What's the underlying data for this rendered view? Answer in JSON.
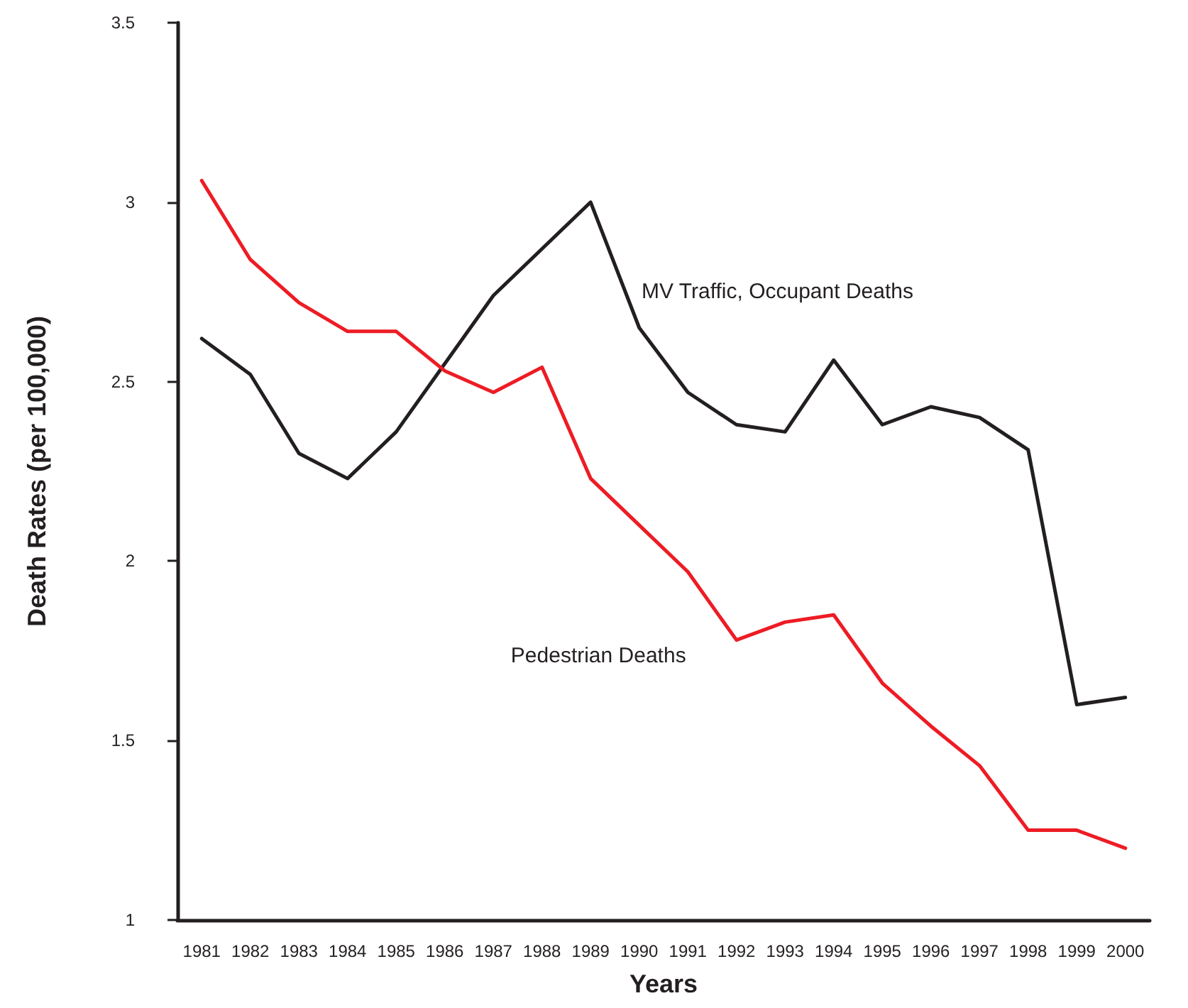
{
  "chart_data": {
    "type": "line",
    "xlabel": "Years",
    "ylabel": "Death Rates (per 100,000)",
    "categories": [
      "1981",
      "1982",
      "1983",
      "1984",
      "1985",
      "1986",
      "1987",
      "1988",
      "1989",
      "1990",
      "1991",
      "1992",
      "1993",
      "1994",
      "1995",
      "1996",
      "1997",
      "1998",
      "1999",
      "2000"
    ],
    "series": [
      {
        "name": "MV Traffic, Occupant Deaths",
        "color": "#231f20",
        "values": [
          2.62,
          2.52,
          2.3,
          2.23,
          2.36,
          2.55,
          2.74,
          2.87,
          3.0,
          2.65,
          2.47,
          2.38,
          2.36,
          2.56,
          2.38,
          2.43,
          2.4,
          2.31,
          1.6,
          1.62
        ]
      },
      {
        "name": "Pedestrian Deaths",
        "color": "#ed1c24",
        "values": [
          3.06,
          2.84,
          2.72,
          2.64,
          2.64,
          2.53,
          2.47,
          2.54,
          2.23,
          2.1,
          1.97,
          1.78,
          1.83,
          1.85,
          1.66,
          1.54,
          1.43,
          1.25,
          1.25,
          1.2
        ]
      }
    ],
    "ylim": [
      1,
      3.5
    ],
    "yticks": [
      1,
      1.5,
      2,
      2.5,
      3,
      3.5
    ],
    "grid": false,
    "legend": false,
    "marker": "none",
    "line_style": "solid"
  }
}
